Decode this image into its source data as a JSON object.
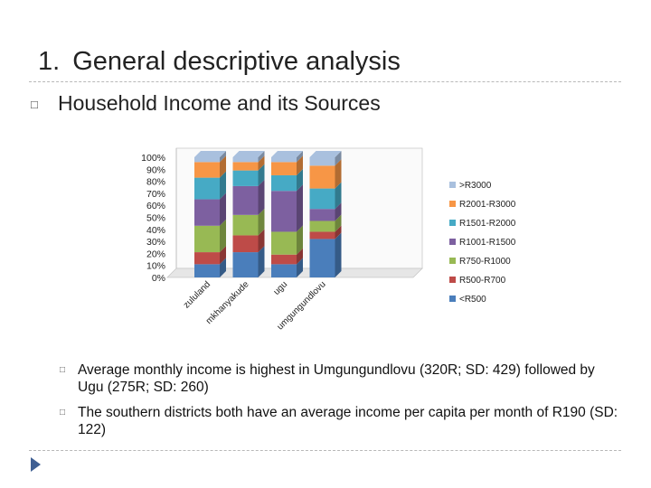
{
  "slide": {
    "title_number": "1.",
    "title_text": "General descriptive analysis",
    "subtitle": "Household Income and its Sources",
    "bullets": [
      "Average monthly income is highest in Umgungundlovu (320R; SD: 429) followed by Ugu (275R; SD: 260)",
      "The southern districts both have an average income per capita per month of R190 (SD: 122)"
    ],
    "bullet_icon": "square-bullet-icon",
    "nav_icon": "play-triangle-icon"
  },
  "chart_data": {
    "type": "bar",
    "stacked": true,
    "percent": true,
    "categories": [
      "zululand",
      "mkhanyakude",
      "ugu",
      "umgungundlovu"
    ],
    "series": [
      {
        "name": "<R500",
        "color": "#4a7ebb",
        "values": [
          11,
          21,
          11,
          32
        ]
      },
      {
        "name": "R500-R700",
        "color": "#be4b48",
        "values": [
          10,
          14,
          8,
          6
        ]
      },
      {
        "name": "R750-R1000",
        "color": "#98b954",
        "values": [
          22,
          17,
          19,
          9
        ]
      },
      {
        "name": "R1001-R1500",
        "color": "#7d60a0",
        "values": [
          22,
          24,
          34,
          10
        ]
      },
      {
        "name": "R1501-R2000",
        "color": "#46aac5",
        "values": [
          18,
          13,
          13,
          17
        ]
      },
      {
        "name": "R2001-R3000",
        "color": "#f79646",
        "values": [
          13,
          7,
          11,
          19
        ]
      },
      {
        "name": ">R3000",
        "color": "#a9c0de",
        "values": [
          4,
          4,
          4,
          7
        ]
      }
    ],
    "yticks": [
      "0%",
      "10%",
      "20%",
      "30%",
      "40%",
      "50%",
      "60%",
      "70%",
      "80%",
      "90%",
      "100%"
    ],
    "ylim": [
      0,
      100
    ],
    "legend_position": "right",
    "grid": false
  }
}
